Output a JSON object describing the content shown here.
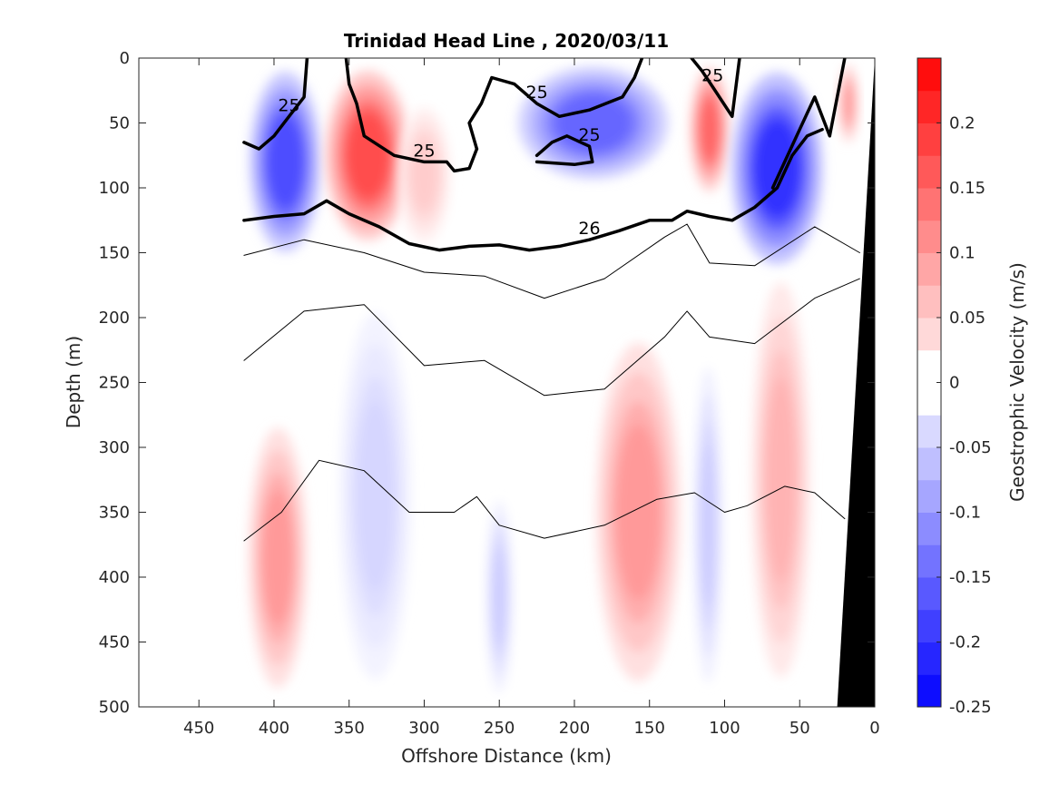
{
  "chart_data": {
    "type": "contour-section",
    "title": "Trinidad Head Line , 2020/03/11",
    "xlabel": "Offshore Distance (km)",
    "ylabel": "Depth (m)",
    "colorbar_label": "Geostrophic Velocity (m/s)",
    "xlim": [
      490,
      0
    ],
    "ylim": [
      0,
      500
    ],
    "x_ticks": [
      "450",
      "400",
      "350",
      "300",
      "250",
      "200",
      "150",
      "100",
      "50",
      "0"
    ],
    "y_ticks": [
      "0",
      "50",
      "100",
      "150",
      "200",
      "250",
      "300",
      "350",
      "400",
      "450",
      "500"
    ],
    "colorbar_ticks": [
      "0.2",
      "0.15",
      "0.1",
      "0.05",
      "0",
      "-0.05",
      "-0.1",
      "-0.15",
      "-0.2",
      "-0.25"
    ],
    "colorbar_range": [
      -0.25,
      0.25
    ],
    "colorbar_step": 0.025,
    "colors": {
      "positive": "#ff0000",
      "negative": "#0000ff",
      "bathymetry": "#000000",
      "isopycnal": "#000000"
    },
    "velocity_cores": [
      {
        "sign": "negative",
        "x": [
          420,
          365
        ],
        "depth": [
          0,
          160
        ],
        "peak": -0.175
      },
      {
        "sign": "positive",
        "x": [
          370,
          305
        ],
        "depth": [
          0,
          150
        ],
        "peak": 0.175
      },
      {
        "sign": "positive",
        "x": [
          320,
          280
        ],
        "depth": [
          30,
          150
        ],
        "peak": 0.05
      },
      {
        "sign": "negative",
        "x": [
          245,
          130
        ],
        "depth": [
          0,
          100
        ],
        "peak": -0.15
      },
      {
        "sign": "positive",
        "x": [
          125,
          95
        ],
        "depth": [
          0,
          110
        ],
        "peak": 0.15
      },
      {
        "sign": "negative",
        "x": [
          100,
          30
        ],
        "depth": [
          0,
          170
        ],
        "peak": -0.2
      },
      {
        "sign": "positive",
        "x": [
          25,
          10
        ],
        "depth": [
          0,
          70
        ],
        "peak": 0.1
      },
      {
        "sign": "negative",
        "x": [
          360,
          305
        ],
        "depth": [
          175,
          500
        ],
        "peak": -0.04
      },
      {
        "sign": "negative",
        "x": [
          260,
          240
        ],
        "depth": [
          330,
          500
        ],
        "peak": -0.05
      },
      {
        "sign": "positive",
        "x": [
          420,
          375
        ],
        "depth": [
          270,
          500
        ],
        "peak": 0.1
      },
      {
        "sign": "positive",
        "x": [
          190,
          125
        ],
        "depth": [
          200,
          500
        ],
        "peak": 0.1
      },
      {
        "sign": "negative",
        "x": [
          122,
          100
        ],
        "depth": [
          220,
          500
        ],
        "peak": -0.05
      },
      {
        "sign": "positive",
        "x": [
          85,
          40
        ],
        "depth": [
          150,
          500
        ],
        "peak": 0.075
      }
    ],
    "isopycnals": [
      {
        "label": "25",
        "bold": true,
        "x": [
          420,
          410,
          400,
          390,
          380,
          378
        ],
        "depth": [
          65,
          70,
          60,
          45,
          30,
          0
        ]
      },
      {
        "label": "25",
        "bold": true,
        "x": [
          352,
          350,
          345,
          340,
          320,
          300,
          285,
          280,
          270,
          265
        ],
        "depth": [
          0,
          20,
          35,
          60,
          75,
          80,
          80,
          87,
          85,
          70
        ]
      },
      {
        "label": "25",
        "bold": true,
        "x": [
          265,
          270,
          262,
          255,
          240,
          225,
          210,
          190,
          168,
          160,
          155
        ],
        "depth": [
          70,
          50,
          35,
          15,
          20,
          35,
          45,
          40,
          30,
          15,
          0
        ]
      },
      {
        "label": "25",
        "bold": true,
        "x": [
          225,
          215,
          205,
          190,
          188,
          200,
          225
        ],
        "depth": [
          75,
          65,
          60,
          68,
          80,
          82,
          80
        ]
      },
      {
        "label": "25",
        "bold": true,
        "x": [
          122,
          115,
          108,
          95,
          90
        ],
        "depth": [
          0,
          10,
          22,
          45,
          0
        ]
      },
      {
        "label": "",
        "bold": true,
        "x": [
          20,
          30,
          40,
          50,
          60,
          68
        ],
        "depth": [
          0,
          60,
          30,
          55,
          80,
          100
        ]
      },
      {
        "label": "26",
        "bold": true,
        "x": [
          420,
          400,
          380,
          365,
          350,
          330,
          310,
          290,
          270,
          250,
          230,
          210,
          190,
          170,
          150,
          135,
          125,
          110,
          95,
          80,
          65,
          55,
          45,
          35
        ],
        "depth": [
          125,
          122,
          120,
          110,
          120,
          130,
          143,
          148,
          145,
          144,
          148,
          145,
          140,
          133,
          125,
          125,
          118,
          122,
          125,
          115,
          100,
          75,
          60,
          55
        ]
      },
      {
        "label": "",
        "bold": false,
        "x": [
          420,
          380,
          340,
          300,
          260,
          220,
          180,
          140,
          125,
          110,
          80,
          40,
          10
        ],
        "depth": [
          152,
          140,
          150,
          165,
          168,
          185,
          170,
          138,
          128,
          158,
          160,
          130,
          150
        ]
      },
      {
        "label": "",
        "bold": false,
        "x": [
          420,
          380,
          340,
          300,
          260,
          220,
          180,
          140,
          125,
          110,
          80,
          40,
          10
        ],
        "depth": [
          233,
          195,
          190,
          237,
          233,
          260,
          255,
          215,
          195,
          215,
          220,
          185,
          170
        ]
      },
      {
        "label": "",
        "bold": false,
        "x": [
          420,
          395,
          370,
          340,
          310,
          280,
          265,
          250,
          220,
          180,
          145,
          120,
          100,
          85,
          60,
          40,
          20
        ],
        "depth": [
          372,
          350,
          310,
          318,
          350,
          350,
          338,
          360,
          370,
          360,
          340,
          335,
          350,
          345,
          330,
          335,
          355
        ]
      }
    ],
    "bathymetry": {
      "x": [
        0,
        25,
        0
      ],
      "depth": [
        0,
        500,
        500
      ]
    }
  }
}
